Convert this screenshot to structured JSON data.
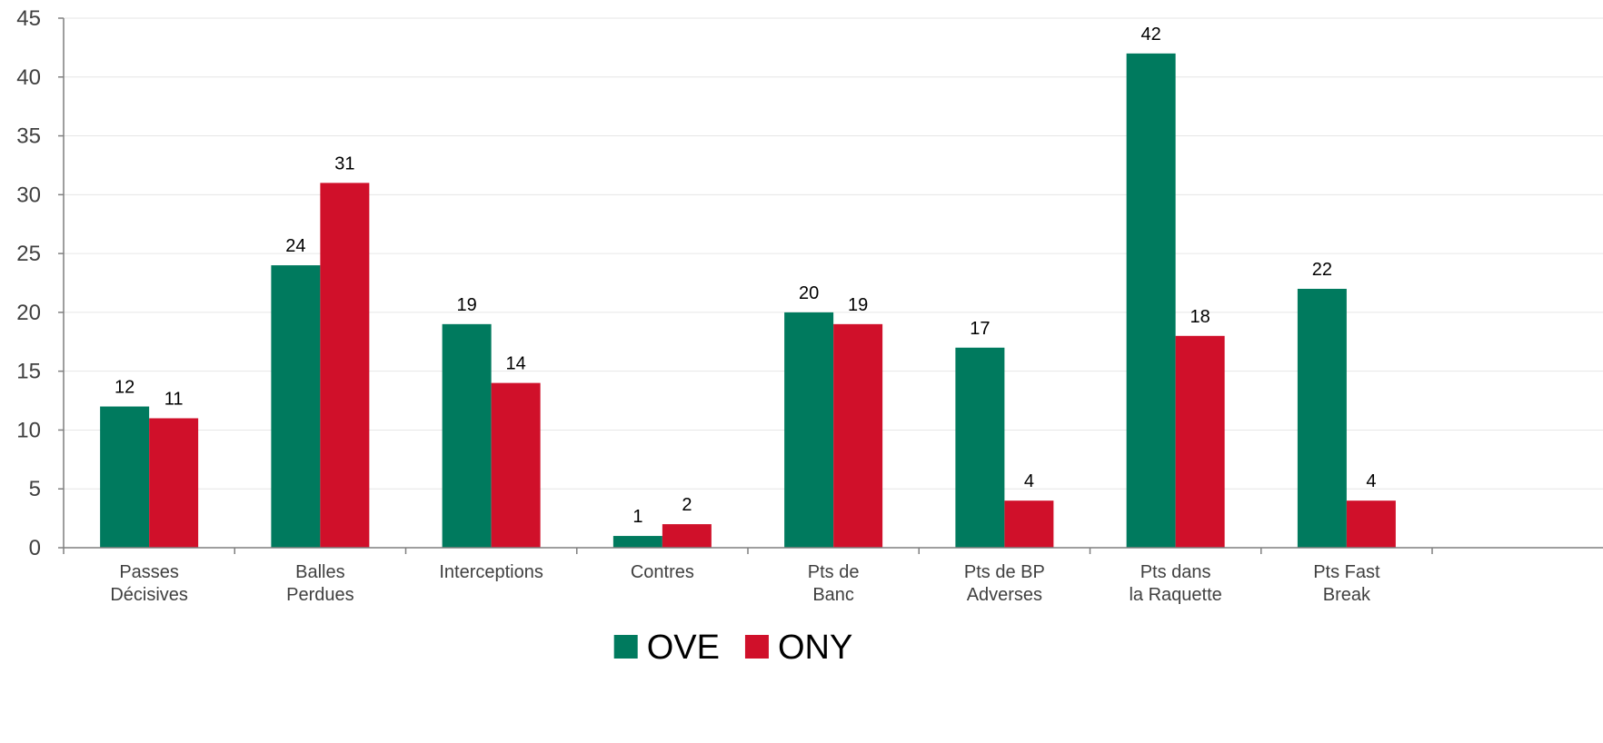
{
  "chart_data": {
    "type": "bar",
    "categories": [
      "Passes\nDécisives",
      "Balles\nPerdues",
      "Interceptions",
      "Contres",
      "Pts de\nBanc",
      "Pts de BP\nAdverses",
      "Pts dans\nla Raquette",
      "Pts Fast\nBreak"
    ],
    "series": [
      {
        "name": "OVE",
        "color": "#007a5e",
        "values": [
          12,
          24,
          19,
          1,
          20,
          17,
          42,
          22
        ]
      },
      {
        "name": "ONY",
        "color": "#d0102a",
        "values": [
          11,
          31,
          14,
          2,
          19,
          4,
          18,
          4
        ]
      }
    ],
    "yticks": [
      0,
      5,
      10,
      15,
      20,
      25,
      30,
      35,
      40,
      45
    ],
    "ylim": [
      0,
      45
    ],
    "grid": true,
    "legend": "bottom-center",
    "data_labels": true
  }
}
